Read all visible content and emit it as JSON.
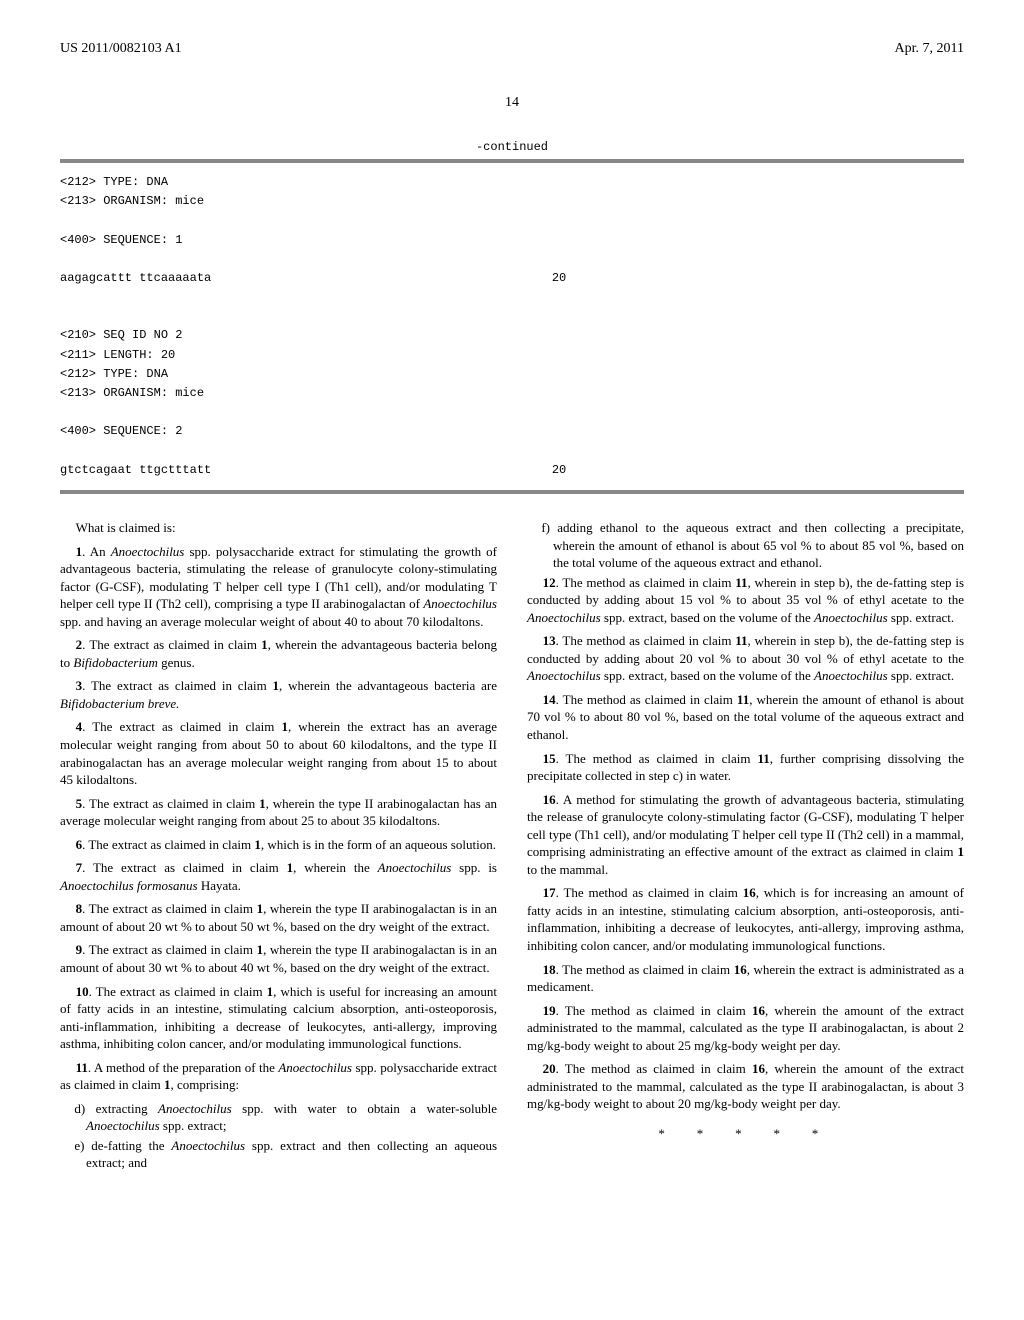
{
  "header": {
    "pub_number": "US 2011/0082103 A1",
    "pub_date": "Apr. 7, 2011"
  },
  "page_number": "14",
  "sequence": {
    "continued_label": "-continued",
    "block1": {
      "type": "<212> TYPE: DNA",
      "organism": "<213> ORGANISM: mice",
      "seq_hdr": "<400> SEQUENCE: 1",
      "seq": "aagagcattt ttcaaaaata",
      "len": "20"
    },
    "block2": {
      "id": "<210> SEQ ID NO 2",
      "length": "<211> LENGTH: 20",
      "type": "<212> TYPE: DNA",
      "organism": "<213> ORGANISM: mice",
      "seq_hdr": "<400> SEQUENCE: 2",
      "seq": "gtctcagaat ttgctttatt",
      "len": "20"
    }
  },
  "claims": {
    "intro": "What is claimed is:",
    "c1a": "1",
    "c1b": ". An ",
    "c1c": "Anoectochilus",
    "c1d": " spp. polysaccharide extract for stimulating the growth of advantageous bacteria, stimulating the release of granulocyte colony-stimulating factor (G-CSF), modulating T helper cell type I (Th1 cell), and/or modulating T helper cell type II (Th2 cell), comprising a type II arabinogalactan of ",
    "c1e": "Anoectochilus",
    "c1f": " spp. and having an average molecular weight of about 40 to about 70 kilodaltons.",
    "c2a": "2",
    "c2b": ". The extract as claimed in claim ",
    "c2c": "1",
    "c2d": ", wherein the advantageous bacteria belong to ",
    "c2e": "Bifidobacterium",
    "c2f": " genus.",
    "c3a": "3",
    "c3b": ". The extract as claimed in claim ",
    "c3c": "1",
    "c3d": ", wherein the advantageous bacteria are ",
    "c3e": "Bifidobacterium breve.",
    "c4a": "4",
    "c4b": ". The extract as claimed in claim ",
    "c4c": "1",
    "c4d": ", wherein the extract has an average molecular weight ranging from about 50 to about 60 kilodaltons, and the type II arabinogalactan has an average molecular weight ranging from about 15 to about 45 kilodaltons.",
    "c5a": "5",
    "c5b": ". The extract as claimed in claim ",
    "c5c": "1",
    "c5d": ", wherein the type II arabinogalactan has an average molecular weight ranging from about 25 to about 35 kilodaltons.",
    "c6a": "6",
    "c6b": ". The extract as claimed in claim ",
    "c6c": "1",
    "c6d": ", which is in the form of an aqueous solution.",
    "c7a": "7",
    "c7b": ". The extract as claimed in claim ",
    "c7c": "1",
    "c7d": ", wherein the ",
    "c7e": "Anoectochilus",
    "c7f": " spp. is ",
    "c7g": "Anoectochilus formosanus",
    "c7h": " Hayata.",
    "c8a": "8",
    "c8b": ". The extract as claimed in claim ",
    "c8c": "1",
    "c8d": ", wherein the type II arabinogalactan is in an amount of about 20 wt % to about 50 wt %, based on the dry weight of the extract.",
    "c9a": "9",
    "c9b": ". The extract as claimed in claim ",
    "c9c": "1",
    "c9d": ", wherein the type II arabinogalactan is in an amount of about 30 wt % to about 40 wt %, based on the dry weight of the extract.",
    "c10a": "10",
    "c10b": ". The extract as claimed in claim ",
    "c10c": "1",
    "c10d": ", which is useful for increasing an amount of fatty acids in an intestine, stimulating calcium absorption, anti-osteoporosis, anti-inflammation, inhibiting a decrease of leukocytes, anti-allergy, improving asthma, inhibiting colon cancer, and/or modulating immunological functions.",
    "c11a": "11",
    "c11b": ". A method of the preparation of the ",
    "c11c": "Anoectochilus",
    "c11d": " spp. polysaccharide extract as claimed in claim ",
    "c11e": "1",
    "c11f": ", comprising:",
    "c11_d": "d) extracting ",
    "c11_d2": "Anoectochilus",
    "c11_d3": " spp. with water to obtain a water-soluble ",
    "c11_d4": "Anoectochilus",
    "c11_d5": " spp. extract;",
    "c11_e": "e) de-fatting the ",
    "c11_e2": "Anoectochilus",
    "c11_e3": " spp. extract and then collecting an aqueous extract; and",
    "c11_f": "f) adding ethanol to the aqueous extract and then collecting a precipitate, wherein the amount of ethanol is about 65 vol % to about 85 vol %, based on the total volume of the aqueous extract and ethanol.",
    "c12a": "12",
    "c12b": ". The method as claimed in claim ",
    "c12c": "11",
    "c12d": ", wherein in step b), the de-fatting step is conducted by adding about 15 vol % to about 35 vol % of ethyl acetate to the ",
    "c12e": "Anoectochilus",
    "c12f": " spp. extract, based on the volume of the ",
    "c12g": "Anoectochilus",
    "c12h": " spp. extract.",
    "c13a": "13",
    "c13b": ". The method as claimed in claim ",
    "c13c": "11",
    "c13d": ", wherein in step b), the de-fatting step is conducted by adding about 20 vol % to about 30 vol % of ethyl acetate to the ",
    "c13e": "Anoectochilus",
    "c13f": " spp. extract, based on the volume of the ",
    "c13g": "Anoectochilus",
    "c13h": " spp. extract.",
    "c14a": "14",
    "c14b": ". The method as claimed in claim ",
    "c14c": "11",
    "c14d": ", wherein the amount of ethanol is about 70 vol % to about 80 vol %, based on the total volume of the aqueous extract and ethanol.",
    "c15a": "15",
    "c15b": ". The method as claimed in claim ",
    "c15c": "11",
    "c15d": ", further comprising dissolving the precipitate collected in step c) in water.",
    "c16a": "16",
    "c16b": ". A method for stimulating the growth of advantageous bacteria, stimulating the release of granulocyte colony-stimulating factor (G-CSF), modulating T helper cell type (Th1 cell), and/or modulating T helper cell type II (Th2 cell) in a mammal, comprising administrating an effective amount of the extract as claimed in claim ",
    "c16c": "1",
    "c16d": " to the mammal.",
    "c17a": "17",
    "c17b": ". The method as claimed in claim ",
    "c17c": "16",
    "c17d": ", which is for increasing an amount of fatty acids in an intestine, stimulating calcium absorption, anti-osteoporosis, anti-inflammation, inhibiting a decrease of leukocytes, anti-allergy, improving asthma, inhibiting colon cancer, and/or modulating immunological functions.",
    "c18a": "18",
    "c18b": ". The method as claimed in claim ",
    "c18c": "16",
    "c18d": ", wherein the extract is administrated as a medicament.",
    "c19a": "19",
    "c19b": ". The method as claimed in claim ",
    "c19c": "16",
    "c19d": ", wherein the amount of the extract administrated to the mammal, calculated as the type II arabinogalactan, is about 2 mg/kg-body weight to about 25 mg/kg-body weight per day.",
    "c20a": "20",
    "c20b": ". The method as claimed in claim ",
    "c20c": "16",
    "c20d": ", wherein the amount of the extract administrated to the mammal, calculated as the type II arabinogalactan, is about 3 mg/kg-body weight to about 20 mg/kg-body weight per day."
  },
  "end_marks": "* * * * *"
}
